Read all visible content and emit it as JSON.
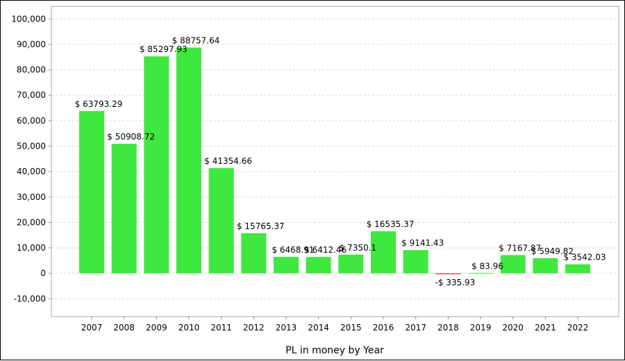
{
  "chart_data": {
    "type": "bar",
    "title": "",
    "xlabel": "PL in money by Year",
    "ylabel": "",
    "ylim": [
      -17000,
      105000
    ],
    "yticks": [
      -10000,
      0,
      10000,
      20000,
      30000,
      40000,
      50000,
      60000,
      70000,
      80000,
      90000,
      100000
    ],
    "ytick_labels": [
      "-10,000",
      "0",
      "10,000",
      "20,000",
      "30,000",
      "40,000",
      "50,000",
      "60,000",
      "70,000",
      "80,000",
      "90,000",
      "100,000"
    ],
    "grid": true,
    "legend": "none",
    "categories": [
      "2007",
      "2008",
      "2009",
      "2010",
      "2011",
      "2012",
      "2013",
      "2014",
      "2015",
      "2016",
      "2017",
      "2018",
      "2019",
      "2020",
      "2021",
      "2022"
    ],
    "values": [
      63793.29,
      50908.72,
      85297.93,
      88757.64,
      41354.66,
      15765.37,
      6468.91,
      6412.46,
      7350.1,
      16535.37,
      9141.43,
      -335.93,
      83.96,
      7167.87,
      5949.82,
      3542.03
    ],
    "data_labels": [
      "$ 63793.29",
      "$ 50908.72",
      "$ 85297.93",
      "$ 88757.64",
      "$ 41354.66",
      "$ 15765.37",
      "$ 6468.91",
      "$ 6412.46",
      "$ 7350.1",
      "$ 16535.37",
      "$ 9141.43",
      "-$ 335.93",
      "$ 83.96",
      "$ 7167.87",
      "$ 5949.82",
      "$ 3542.03"
    ],
    "colors": {
      "positive": "#3ee83e",
      "negative": "#ff2a2a",
      "grid": "#d8d8d8",
      "axis": "#888888"
    }
  }
}
